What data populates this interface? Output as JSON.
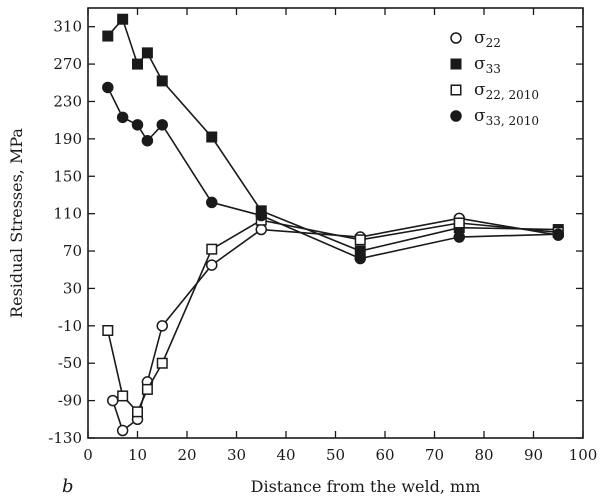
{
  "chart_data": {
    "type": "line",
    "panel_label": "b",
    "xlabel": "Distance from the weld, mm",
    "ylabel": "Residual Stresses, MPa",
    "xlim": [
      0,
      100
    ],
    "ylim": [
      -130,
      330
    ],
    "xticks": [
      0,
      10,
      20,
      30,
      40,
      50,
      60,
      70,
      80,
      90,
      100
    ],
    "yticks": [
      -130,
      -90,
      -50,
      -10,
      30,
      70,
      110,
      150,
      190,
      230,
      270,
      310
    ],
    "legend_position": "top-right",
    "series": [
      {
        "name": "σ22",
        "label_main": "σ",
        "label_sub": "22",
        "marker": "circle-open",
        "x": [
          5,
          7,
          10,
          12,
          15,
          25,
          35,
          55,
          75,
          95
        ],
        "y": [
          -90,
          -122,
          -110,
          -70,
          -10,
          55,
          93,
          85,
          105,
          87
        ]
      },
      {
        "name": "σ33",
        "label_main": "σ",
        "label_sub": "33",
        "marker": "square-filled",
        "x": [
          4,
          7,
          10,
          12,
          15,
          25,
          35,
          55,
          75,
          95
        ],
        "y": [
          300,
          318,
          270,
          282,
          252,
          192,
          113,
          70,
          95,
          93
        ]
      },
      {
        "name": "σ22, 2010",
        "label_main": "σ",
        "label_sub": "22, 2010",
        "marker": "square-open",
        "x": [
          4,
          7,
          10,
          12,
          15,
          25,
          35,
          55,
          75,
          95
        ],
        "y": [
          -15,
          -85,
          -102,
          -78,
          -50,
          72,
          103,
          82,
          100,
          90
        ]
      },
      {
        "name": "σ33, 2010",
        "label_main": "σ",
        "label_sub": "33, 2010",
        "marker": "circle-filled",
        "x": [
          4,
          7,
          10,
          12,
          15,
          25,
          35,
          55,
          75,
          95
        ],
        "y": [
          245,
          213,
          205,
          188,
          205,
          122,
          108,
          62,
          85,
          88
        ]
      }
    ]
  }
}
